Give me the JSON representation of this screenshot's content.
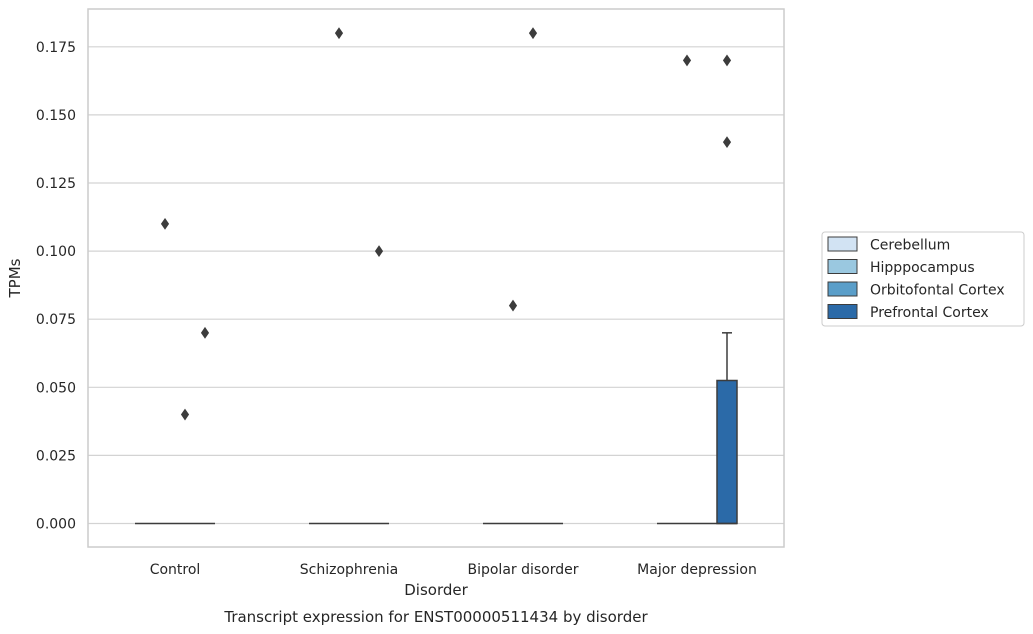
{
  "chart_data": {
    "type": "box",
    "title": "",
    "caption": "Transcript expression for ENST00000511434 by disorder",
    "xlabel": "Disorder",
    "ylabel": "TPMs",
    "ylim": [
      -0.0175,
      0.1805
    ],
    "yticks": [
      "0.000",
      "0.025",
      "0.050",
      "0.075",
      "0.100",
      "0.125",
      "0.150",
      "0.175"
    ],
    "grid": "horizontal",
    "legend_position": "right",
    "categories": [
      "Control",
      "Schizophrenia",
      "Bipolar disorder",
      "Major depression"
    ],
    "series": [
      {
        "name": "Cerebellum",
        "color": "#d2e3f3",
        "boxes": [
          {
            "q1": 0,
            "median": 0,
            "q3": 0,
            "whisker_low": 0,
            "whisker_high": 0,
            "outliers": []
          },
          {
            "q1": 0,
            "median": 0,
            "q3": 0,
            "whisker_low": 0,
            "whisker_high": 0,
            "outliers": []
          },
          {
            "q1": 0,
            "median": 0,
            "q3": 0,
            "whisker_low": 0,
            "whisker_high": 0,
            "outliers": []
          },
          {
            "q1": 0,
            "median": 0,
            "q3": 0,
            "whisker_low": 0,
            "whisker_high": 0,
            "outliers": []
          }
        ]
      },
      {
        "name": "Hipppocampus",
        "color": "#9ac8e0",
        "boxes": [
          {
            "q1": 0,
            "median": 0,
            "q3": 0,
            "whisker_low": 0,
            "whisker_high": 0,
            "outliers": [
              0.11
            ]
          },
          {
            "q1": 0,
            "median": 0,
            "q3": 0,
            "whisker_low": 0,
            "whisker_high": 0,
            "outliers": [
              0.18
            ]
          },
          {
            "q1": 0,
            "median": 0,
            "q3": 0,
            "whisker_low": 0,
            "whisker_high": 0,
            "outliers": [
              0.08
            ]
          },
          {
            "q1": 0,
            "median": 0,
            "q3": 0,
            "whisker_low": 0,
            "whisker_high": 0,
            "outliers": [
              0.17
            ]
          }
        ]
      },
      {
        "name": "Orbitofontal Cortex",
        "color": "#5a9ec9",
        "boxes": [
          {
            "q1": 0,
            "median": 0,
            "q3": 0,
            "whisker_low": 0,
            "whisker_high": 0,
            "outliers": [
              0.04
            ]
          },
          {
            "q1": 0,
            "median": 0,
            "q3": 0,
            "whisker_low": 0,
            "whisker_high": 0,
            "outliers": []
          },
          {
            "q1": 0,
            "median": 0,
            "q3": 0,
            "whisker_low": 0,
            "whisker_high": 0,
            "outliers": [
              0.18
            ]
          },
          {
            "q1": 0,
            "median": 0,
            "q3": 0,
            "whisker_low": 0,
            "whisker_high": 0,
            "outliers": []
          }
        ]
      },
      {
        "name": "Prefrontal Cortex",
        "color": "#2b6aa8",
        "boxes": [
          {
            "q1": 0,
            "median": 0,
            "q3": 0,
            "whisker_low": 0,
            "whisker_high": 0,
            "outliers": [
              0.07
            ]
          },
          {
            "q1": 0,
            "median": 0,
            "q3": 0,
            "whisker_low": 0,
            "whisker_high": 0,
            "outliers": [
              0.1
            ]
          },
          {
            "q1": 0,
            "median": 0,
            "q3": 0,
            "whisker_low": 0,
            "whisker_high": 0,
            "outliers": []
          },
          {
            "q1": 0,
            "median": 0,
            "q3": 0.0525,
            "whisker_low": 0,
            "whisker_high": 0.07,
            "outliers": [
              0.17,
              0.14
            ]
          }
        ]
      }
    ]
  }
}
